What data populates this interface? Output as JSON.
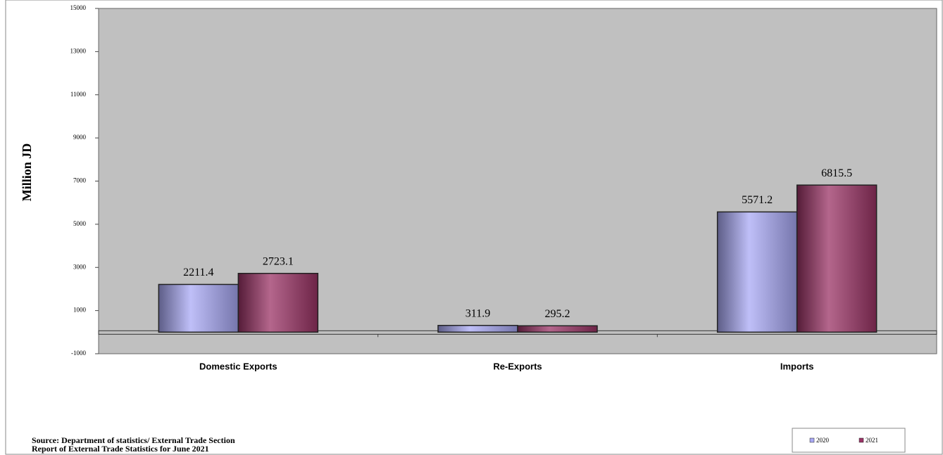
{
  "chart_data": {
    "type": "bar",
    "y_axis_label": "Million JD",
    "categories": [
      "Domestic Exports",
      "Re-Exports",
      "Imports"
    ],
    "series": [
      {
        "name": "2020",
        "color": "#a9a9f5",
        "values": [
          2211.4,
          311.9,
          5571.2
        ]
      },
      {
        "name": "2021",
        "color": "#9b3366",
        "values": [
          2723.1,
          295.2,
          6815.5
        ]
      }
    ],
    "ylim": [
      -1000,
      15000
    ],
    "yticks": [
      -1000,
      1000,
      3000,
      5000,
      7000,
      9000,
      11000,
      13000,
      15000
    ],
    "notes": [
      "Source: Department of statistics/ External Trade Section",
      "Report of External Trade Statistics for June 2021"
    ],
    "legend": "bottom-right"
  }
}
